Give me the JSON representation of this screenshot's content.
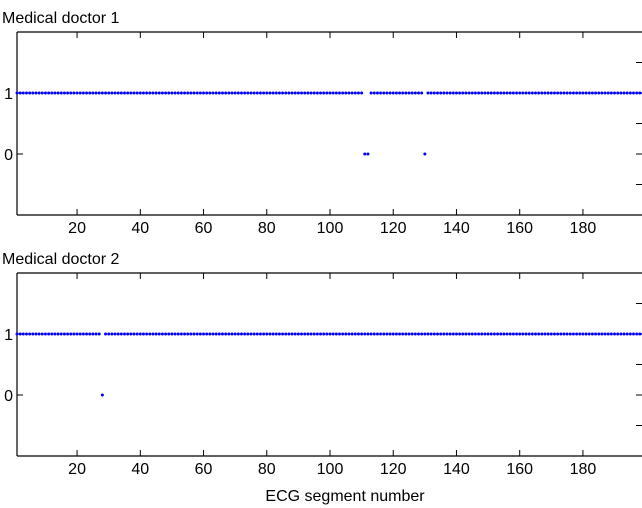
{
  "chart_data": [
    {
      "type": "scatter",
      "title": "Medical doctor 1",
      "xlabel": "",
      "ylabel": "",
      "xlim": [
        1,
        199
      ],
      "ylim": [
        -1,
        2
      ],
      "xticks": [
        20,
        40,
        60,
        80,
        100,
        120,
        140,
        160,
        180
      ],
      "yticks": [
        0,
        1
      ],
      "color": "#0000ff",
      "grid": false,
      "zero_points_x": [
        111,
        112,
        130
      ],
      "series": [
        {
          "x_range": [
            1,
            199
          ],
          "default_value": 1,
          "zero_at": [
            111,
            112,
            130
          ]
        }
      ]
    },
    {
      "type": "scatter",
      "title": "Medical doctor 2",
      "xlabel": "ECG segment number",
      "ylabel": "",
      "xlim": [
        1,
        199
      ],
      "ylim": [
        -1,
        2
      ],
      "xticks": [
        20,
        40,
        60,
        80,
        100,
        120,
        140,
        160,
        180
      ],
      "yticks": [
        0,
        1
      ],
      "color": "#0000ff",
      "grid": false,
      "zero_points_x": [
        28
      ],
      "series": [
        {
          "x_range": [
            1,
            199
          ],
          "default_value": 1,
          "zero_at": [
            28
          ]
        }
      ]
    }
  ]
}
